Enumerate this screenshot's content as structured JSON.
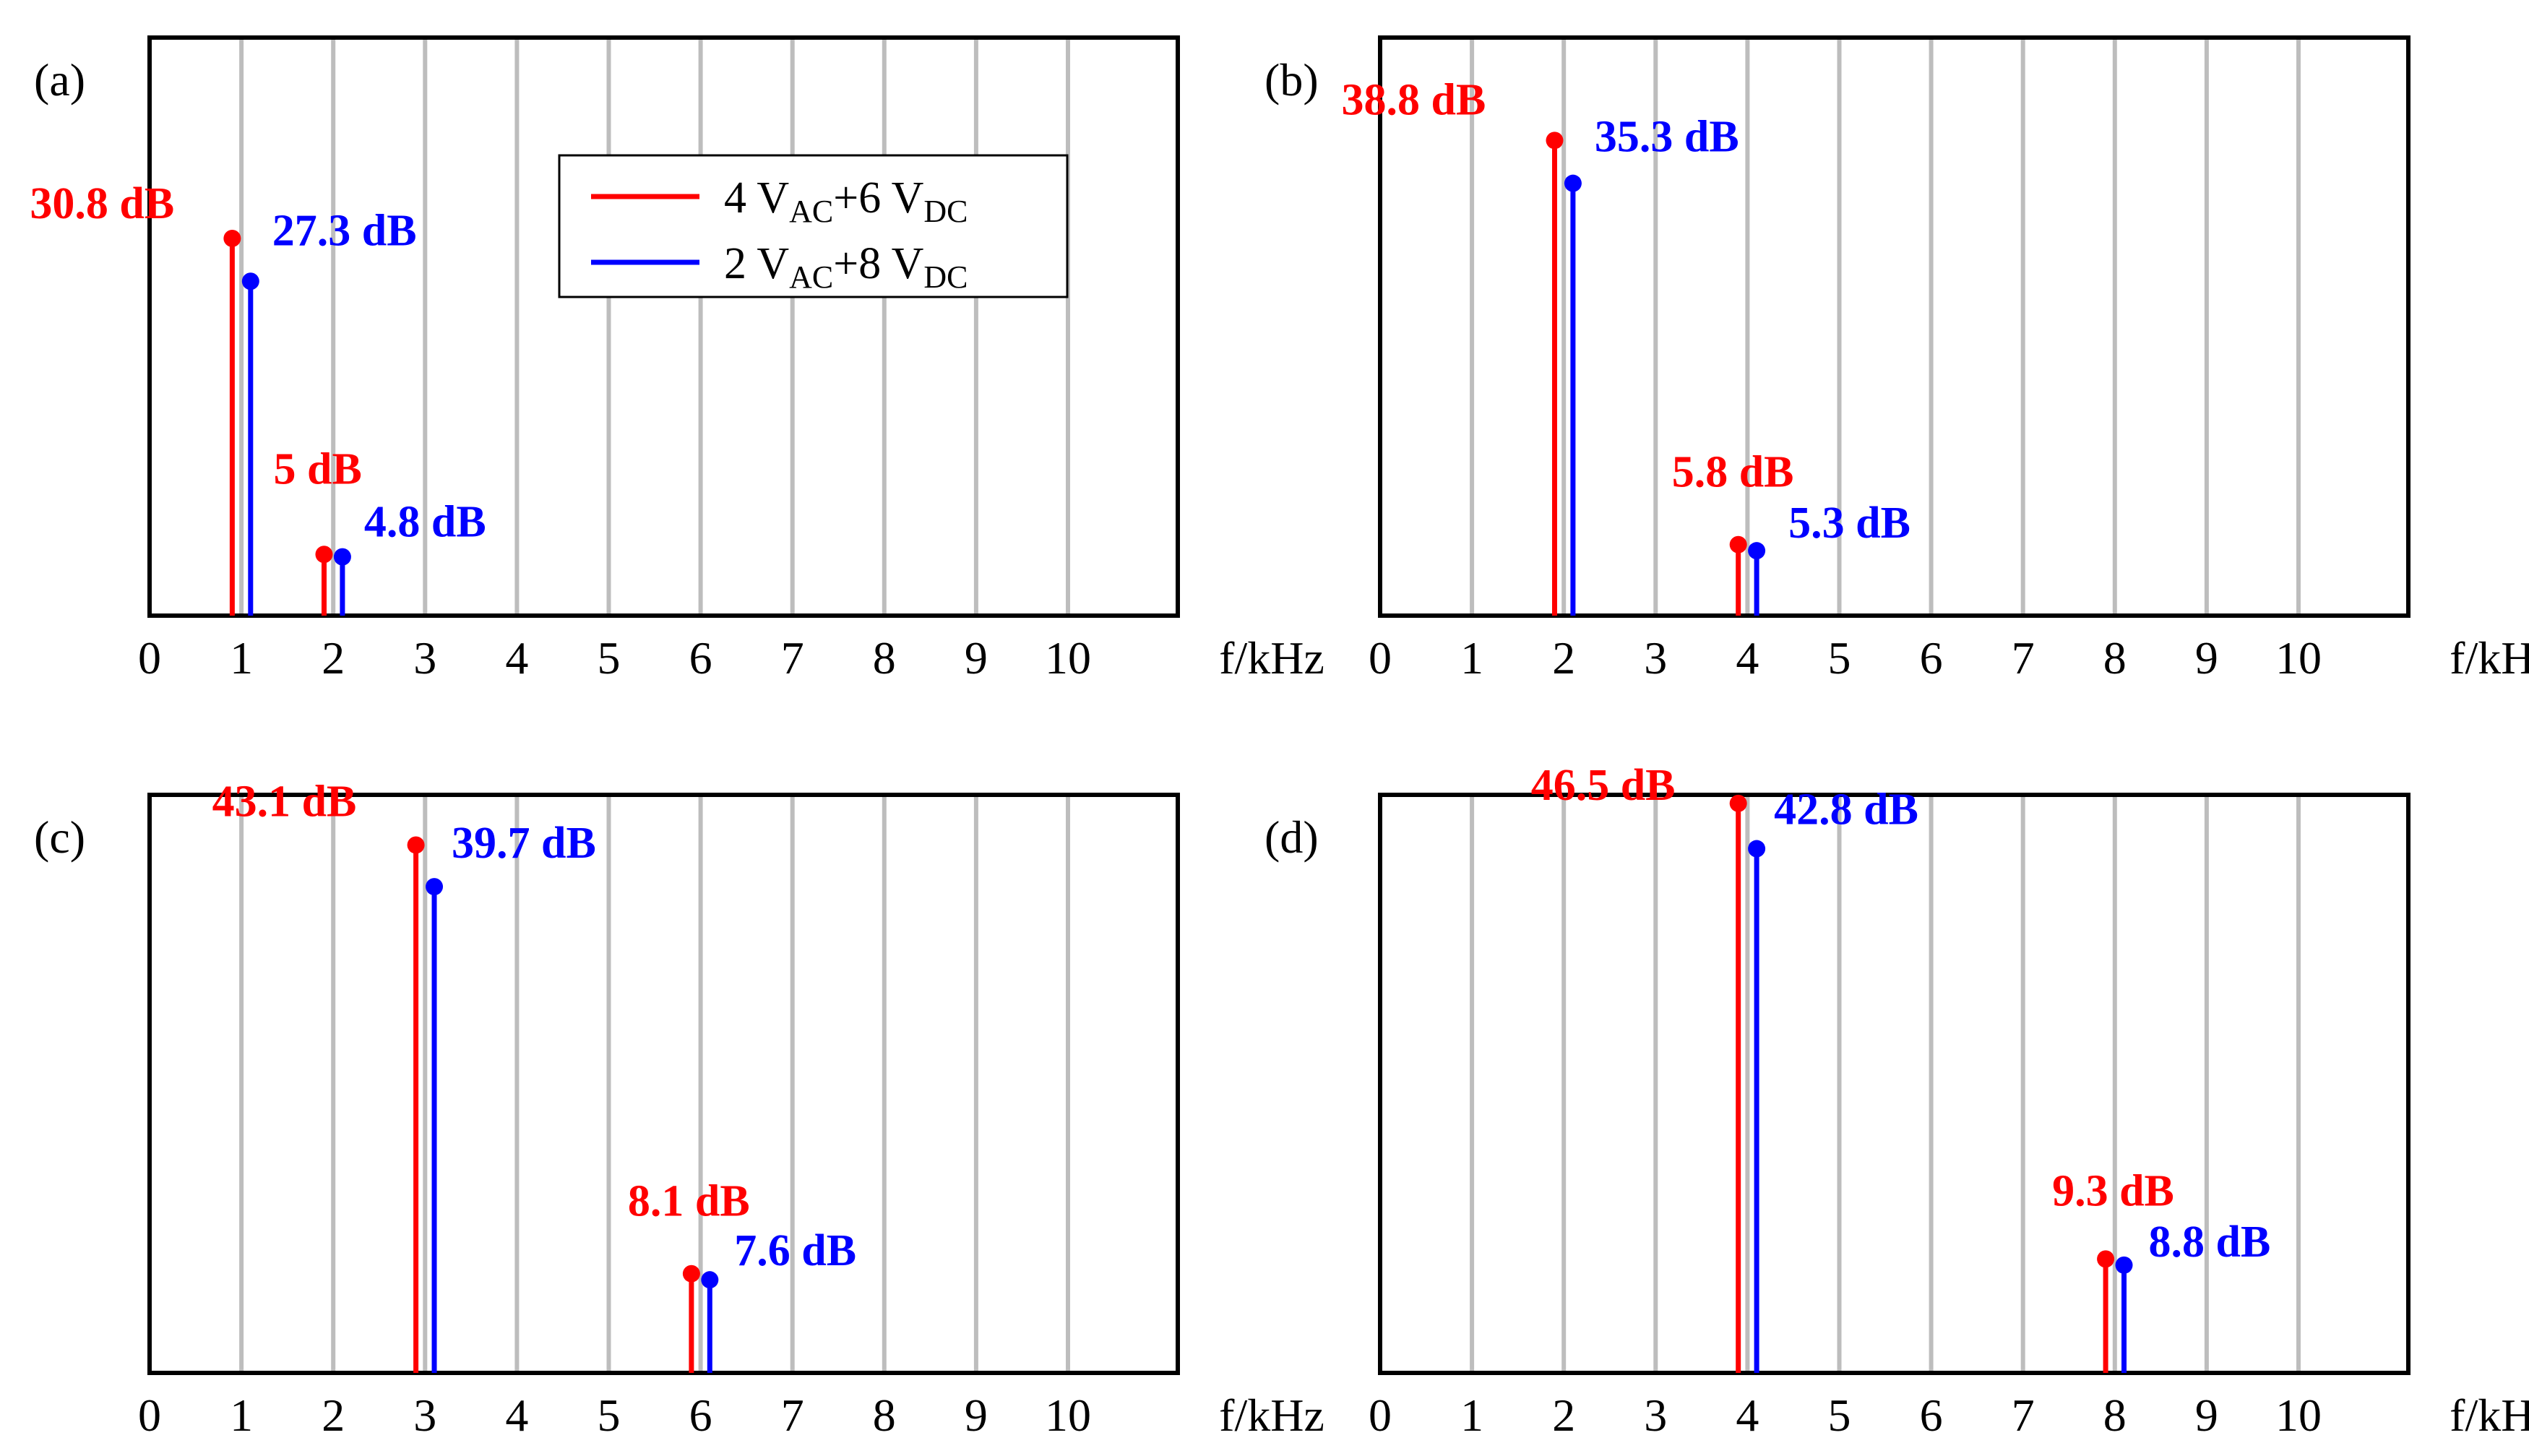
{
  "figure": {
    "legend": {
      "entries": [
        {
          "prefix": "4 V",
          "sub1": "AC",
          "mid": "+6 V",
          "sub2": "DC",
          "color": "#ff0000"
        },
        {
          "prefix": "2 V",
          "sub1": "AC",
          "mid": "+8 V",
          "sub2": "DC",
          "color": "#0000ff"
        }
      ]
    }
  },
  "chart_data": [
    {
      "type": "stem",
      "panel_label": "(a)",
      "xlabel": "f/kHz",
      "xlim": [
        0,
        11
      ],
      "x_ticks": [
        0,
        1,
        2,
        3,
        4,
        5,
        6,
        7,
        8,
        9,
        10
      ],
      "x_tick_labels": [
        "0",
        "1",
        "2",
        "3",
        "4",
        "5",
        "6",
        "7",
        "8",
        "9",
        "10"
      ],
      "grid": true,
      "ylim": [
        0,
        50
      ],
      "series": [
        {
          "name": "4 VAC+6 VDC",
          "color": "#ff0000",
          "points": [
            {
              "x": 0.9,
              "y": 30.8,
              "label": "30.8 dB"
            },
            {
              "x": 1.9,
              "y": 5,
              "label": "5 dB"
            }
          ]
        },
        {
          "name": "2 VAC+8 VDC",
          "color": "#0000ff",
          "points": [
            {
              "x": 1.1,
              "y": 27.3,
              "label": "27.3 dB"
            },
            {
              "x": 2.1,
              "y": 4.8,
              "label": "4.8 dB"
            }
          ]
        }
      ]
    },
    {
      "type": "stem",
      "panel_label": "(b)",
      "xlabel": "f/kHz",
      "xlim": [
        0,
        11
      ],
      "x_ticks": [
        0,
        1,
        2,
        3,
        4,
        5,
        6,
        7,
        8,
        9,
        10
      ],
      "x_tick_labels": [
        "0",
        "1",
        "2",
        "3",
        "4",
        "5",
        "6",
        "7",
        "8",
        "9",
        "10"
      ],
      "grid": true,
      "ylim": [
        0,
        50
      ],
      "series": [
        {
          "name": "4 VAC+6 VDC",
          "color": "#ff0000",
          "points": [
            {
              "x": 1.9,
              "y": 38.8,
              "label": "38.8 dB"
            },
            {
              "x": 3.9,
              "y": 5.8,
              "label": "5.8 dB"
            }
          ]
        },
        {
          "name": "2 VAC+8 VDC",
          "color": "#0000ff",
          "points": [
            {
              "x": 2.1,
              "y": 35.3,
              "label": "35.3 dB"
            },
            {
              "x": 4.1,
              "y": 5.3,
              "label": "5.3 dB"
            }
          ]
        }
      ]
    },
    {
      "type": "stem",
      "panel_label": "(c)",
      "xlabel": "f/kHz",
      "xlim": [
        0,
        11
      ],
      "x_ticks": [
        0,
        1,
        2,
        3,
        4,
        5,
        6,
        7,
        8,
        9,
        10
      ],
      "x_tick_labels": [
        "0",
        "1",
        "2",
        "3",
        "4",
        "5",
        "6",
        "7",
        "8",
        "9",
        "10"
      ],
      "grid": true,
      "ylim": [
        0,
        50
      ],
      "series": [
        {
          "name": "4 VAC+6 VDC",
          "color": "#ff0000",
          "points": [
            {
              "x": 2.9,
              "y": 43.1,
              "label": "43.1 dB"
            },
            {
              "x": 5.9,
              "y": 8.1,
              "label": "8.1 dB"
            }
          ]
        },
        {
          "name": "2 VAC+8 VDC",
          "color": "#0000ff",
          "points": [
            {
              "x": 3.1,
              "y": 39.7,
              "label": "39.7 dB"
            },
            {
              "x": 6.1,
              "y": 7.6,
              "label": "7.6 dB"
            }
          ]
        }
      ]
    },
    {
      "type": "stem",
      "panel_label": "(d)",
      "xlabel": "f/kHz",
      "xlim": [
        0,
        11
      ],
      "x_ticks": [
        0,
        1,
        2,
        3,
        4,
        5,
        6,
        7,
        8,
        9,
        10
      ],
      "x_tick_labels": [
        "0",
        "1",
        "2",
        "3",
        "4",
        "5",
        "6",
        "7",
        "8",
        "9",
        "10"
      ],
      "grid": true,
      "ylim": [
        0,
        50
      ],
      "series": [
        {
          "name": "4 VAC+6 VDC",
          "color": "#ff0000",
          "points": [
            {
              "x": 3.9,
              "y": 46.5,
              "label": "46.5 dB"
            },
            {
              "x": 7.9,
              "y": 9.3,
              "label": "9.3 dB"
            }
          ]
        },
        {
          "name": "2 VAC+8 VDC",
          "color": "#0000ff",
          "points": [
            {
              "x": 4.1,
              "y": 42.8,
              "label": "42.8 dB"
            },
            {
              "x": 8.1,
              "y": 8.8,
              "label": "8.8 dB"
            }
          ]
        }
      ]
    }
  ]
}
